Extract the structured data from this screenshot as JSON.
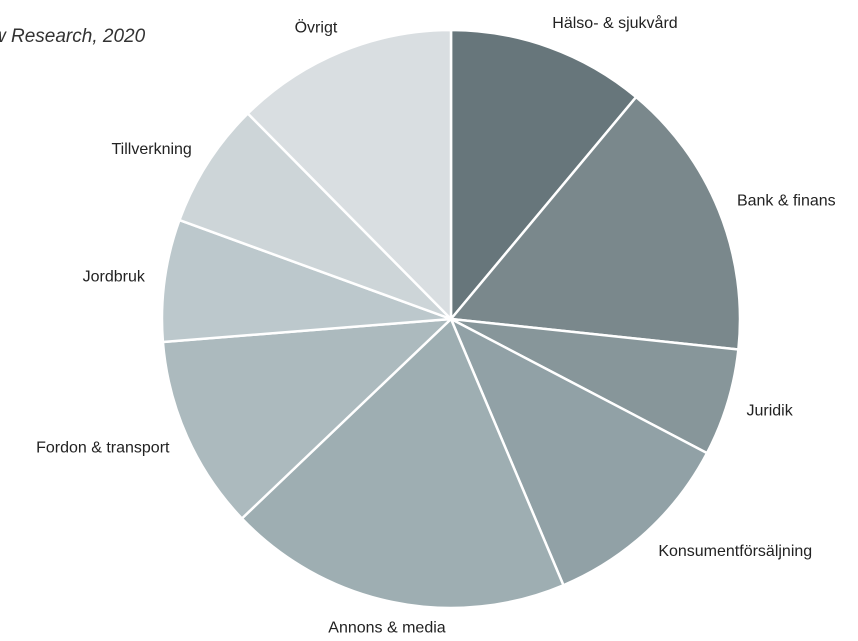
{
  "source_note": "w Research, 2020",
  "colors": {
    "slice_stroke": "#ffffff",
    "label": "#222222"
  },
  "chart_data": {
    "type": "pie",
    "title": "",
    "start_angle_deg": 0,
    "direction": "clockwise",
    "slices": [
      {
        "label": "Hälso- & sjukvård",
        "value": 10.7,
        "color": "#67767b"
      },
      {
        "label": "Bank & finans",
        "value": 15.1,
        "color": "#7a888c"
      },
      {
        "label": "Juridik",
        "value": 5.8,
        "color": "#87969a"
      },
      {
        "label": "Konsumentförsäljning",
        "value": 10.6,
        "color": "#91a1a6"
      },
      {
        "label": "Annons & media",
        "value": 18.6,
        "color": "#9eaeb2"
      },
      {
        "label": "Fordon & transport",
        "value": 10.5,
        "color": "#acbabe"
      },
      {
        "label": "Jordbruk",
        "value": 6.6,
        "color": "#bcc8cc"
      },
      {
        "label": "Tillverkning",
        "value": 6.8,
        "color": "#cdd5d8"
      },
      {
        "label": "Övrigt",
        "value": 12.0,
        "color": "#d9dee1"
      }
    ]
  }
}
